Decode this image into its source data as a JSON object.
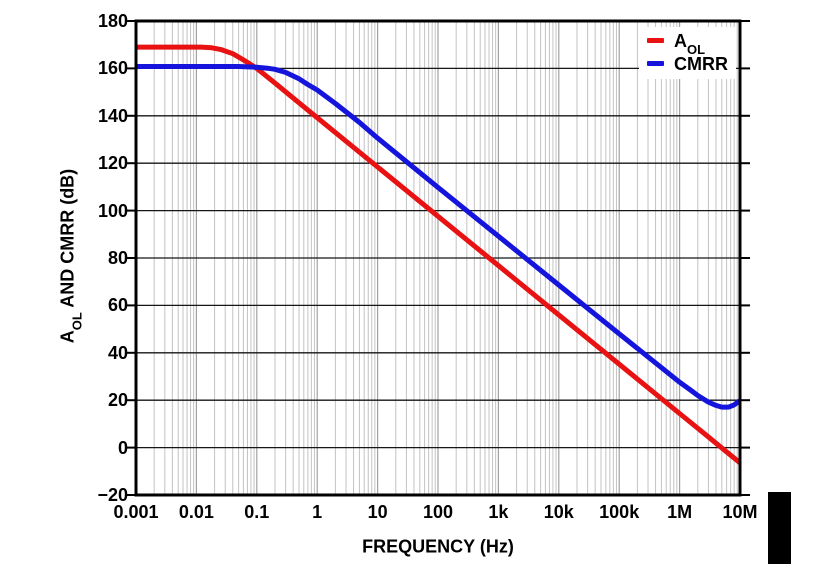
{
  "figure": {
    "y_axis": {
      "title_pre": "A",
      "title_sub": "OL",
      "title_post": " AND CMRR (dB)",
      "ticks": [
        "180",
        "160",
        "140",
        "120",
        "100",
        "80",
        "60",
        "40",
        "20",
        "0",
        "−20"
      ]
    },
    "x_axis": {
      "title": "FREQUENCY (Hz)",
      "ticks": [
        "0.001",
        "0.01",
        "0.1",
        "1",
        "10",
        "100",
        "1k",
        "10k",
        "100k",
        "1M",
        "10M"
      ]
    },
    "legend": {
      "items": [
        {
          "pre": "A",
          "sub": "OL",
          "color": "#e81212"
        },
        {
          "pre": "CMRR",
          "sub": "",
          "color": "#1414dc"
        }
      ]
    },
    "page_marker_color": "#000000"
  },
  "chart_data": {
    "type": "line",
    "title": "",
    "xlabel": "FREQUENCY (Hz)",
    "ylabel": "AOL AND CMRR (dB)",
    "x_scale": "log",
    "xlim": [
      0.001,
      10000000
    ],
    "ylim": [
      -20,
      180
    ],
    "y_tick_step": 20,
    "x_decade_labels": [
      "0.001",
      "0.01",
      "0.1",
      "1",
      "10",
      "100",
      "1k",
      "10k",
      "100k",
      "1M",
      "10M"
    ],
    "grid": true,
    "grid_minor_color": "#c3c3c3",
    "grid_major_color": "#a2a2a2",
    "grid_hline_color": "#161616",
    "frame_color": "#000000",
    "legend_position": "top-right",
    "series": [
      {
        "name": "AOL",
        "color": "#e81212",
        "points": [
          [
            0.001,
            169
          ],
          [
            0.008,
            169
          ],
          [
            0.012,
            169
          ],
          [
            0.018,
            168.7
          ],
          [
            0.025,
            168
          ],
          [
            0.04,
            166.2
          ],
          [
            0.06,
            163.6
          ],
          [
            0.1,
            160
          ],
          [
            0.2,
            153.8
          ],
          [
            0.5,
            145.5
          ],
          [
            1,
            139.2
          ],
          [
            10,
            118.4
          ],
          [
            100,
            97.6
          ],
          [
            1000,
            76.8
          ],
          [
            10000,
            56
          ],
          [
            100000,
            35.2
          ],
          [
            1000000,
            14.4
          ],
          [
            3000000,
            4.5
          ],
          [
            7000000,
            -3.2
          ],
          [
            10000000,
            -6.4
          ]
        ]
      },
      {
        "name": "CMRR",
        "color": "#1414dc",
        "points": [
          [
            0.001,
            160.8
          ],
          [
            0.05,
            160.8
          ],
          [
            0.1,
            160.5
          ],
          [
            0.15,
            160.1
          ],
          [
            0.2,
            159.6
          ],
          [
            0.3,
            158.3
          ],
          [
            0.5,
            155.6
          ],
          [
            0.7,
            153.2
          ],
          [
            1,
            150.9
          ],
          [
            2,
            145.2
          ],
          [
            5,
            137.2
          ],
          [
            10,
            130.6
          ],
          [
            100,
            109.8
          ],
          [
            1000,
            89.2
          ],
          [
            10000,
            68.6
          ],
          [
            100000,
            48
          ],
          [
            1000000,
            27.6
          ],
          [
            1500000,
            24.4
          ],
          [
            2000000,
            22
          ],
          [
            3000000,
            19.2
          ],
          [
            4000000,
            17.8
          ],
          [
            5000000,
            17.1
          ],
          [
            6500000,
            17.1
          ],
          [
            8000000,
            18
          ],
          [
            10000000,
            19.8
          ]
        ]
      }
    ]
  }
}
